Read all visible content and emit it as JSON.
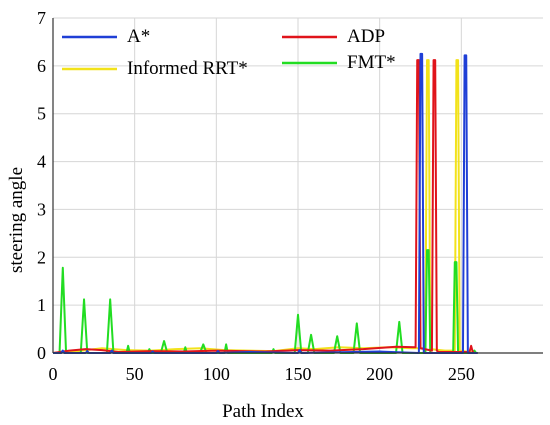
{
  "chart_data": {
    "type": "line",
    "title": "",
    "xlabel": "Path Index",
    "ylabel": "steering angle",
    "xlim": [
      0,
      300
    ],
    "ylim": [
      0,
      7
    ],
    "xticks": [
      0,
      50,
      100,
      150,
      200,
      250
    ],
    "yticks": [
      0,
      1,
      2,
      3,
      4,
      5,
      6,
      7
    ],
    "grid": true,
    "legend_position": "top",
    "series": [
      {
        "name": "A*",
        "color": "#1f3fd6",
        "x": [
          0,
          5,
          6,
          7,
          20,
          21,
          22,
          35,
          36,
          37,
          60,
          61,
          62,
          100,
          101,
          102,
          120,
          150,
          151,
          152,
          200,
          224,
          225,
          226,
          227,
          251,
          252,
          253,
          254,
          260
        ],
        "y": [
          0,
          0,
          0.05,
          0,
          0,
          0.04,
          0,
          0,
          0.05,
          0,
          0,
          0.03,
          0,
          0,
          0.04,
          0,
          0.02,
          0,
          0.06,
          0,
          0.03,
          0,
          6.25,
          6.25,
          0,
          0,
          6.22,
          6.22,
          0,
          0
        ]
      },
      {
        "name": "ADP",
        "color": "#e0141b",
        "x": [
          0,
          10,
          20,
          30,
          40,
          60,
          80,
          100,
          130,
          150,
          170,
          190,
          210,
          222,
          223,
          224,
          225,
          232,
          233,
          234,
          235,
          236,
          255,
          256,
          257,
          258,
          260
        ],
        "y": [
          0,
          0.05,
          0.08,
          0.06,
          0.02,
          0.04,
          0.03,
          0.05,
          0.03,
          0.06,
          0.05,
          0.08,
          0.13,
          0.12,
          6.12,
          6.12,
          0.1,
          0.05,
          6.12,
          6.12,
          0.05,
          0.02,
          0.02,
          0.15,
          0.02,
          0,
          0
        ]
      },
      {
        "name": "Informed RRT*",
        "color": "#f2e21a",
        "x": [
          0,
          15,
          30,
          45,
          60,
          75,
          90,
          105,
          120,
          135,
          150,
          160,
          175,
          190,
          205,
          220,
          228,
          229,
          230,
          231,
          240,
          246,
          247,
          248,
          249,
          255,
          260
        ],
        "y": [
          0,
          0.04,
          0.1,
          0.06,
          0.05,
          0.08,
          0.1,
          0.06,
          0.05,
          0.04,
          0.1,
          0.08,
          0.12,
          0.1,
          0.12,
          0.1,
          0.1,
          6.12,
          6.12,
          0.08,
          0.05,
          0.05,
          6.12,
          6.12,
          0.05,
          0.02,
          0
        ]
      },
      {
        "name": "FMT*",
        "color": "#22dd22",
        "x": [
          0,
          4,
          6,
          8,
          17,
          19,
          21,
          33,
          35,
          37,
          45,
          46,
          47,
          58,
          59,
          60,
          66,
          68,
          70,
          80,
          81,
          82,
          90,
          92,
          94,
          105,
          106,
          107,
          120,
          134,
          135,
          136,
          148,
          150,
          152,
          156,
          158,
          160,
          172,
          174,
          176,
          184,
          186,
          188,
          210,
          212,
          214,
          228,
          229,
          230,
          231,
          232,
          245,
          246,
          247,
          248,
          249,
          257,
          258,
          259,
          260
        ],
        "y": [
          0,
          0,
          1.78,
          0,
          0,
          1.12,
          0,
          0,
          1.12,
          0,
          0,
          0.15,
          0,
          0,
          0.08,
          0,
          0,
          0.25,
          0,
          0,
          0.12,
          0,
          0,
          0.18,
          0,
          0,
          0.18,
          0,
          0,
          0,
          0.08,
          0,
          0,
          0.8,
          0,
          0,
          0.38,
          0,
          0,
          0.35,
          0,
          0,
          0.62,
          0,
          0,
          0.65,
          0,
          0,
          2.15,
          2.15,
          0,
          0,
          0,
          1.9,
          1.9,
          0,
          0,
          0,
          0.05,
          0,
          0
        ]
      }
    ]
  }
}
